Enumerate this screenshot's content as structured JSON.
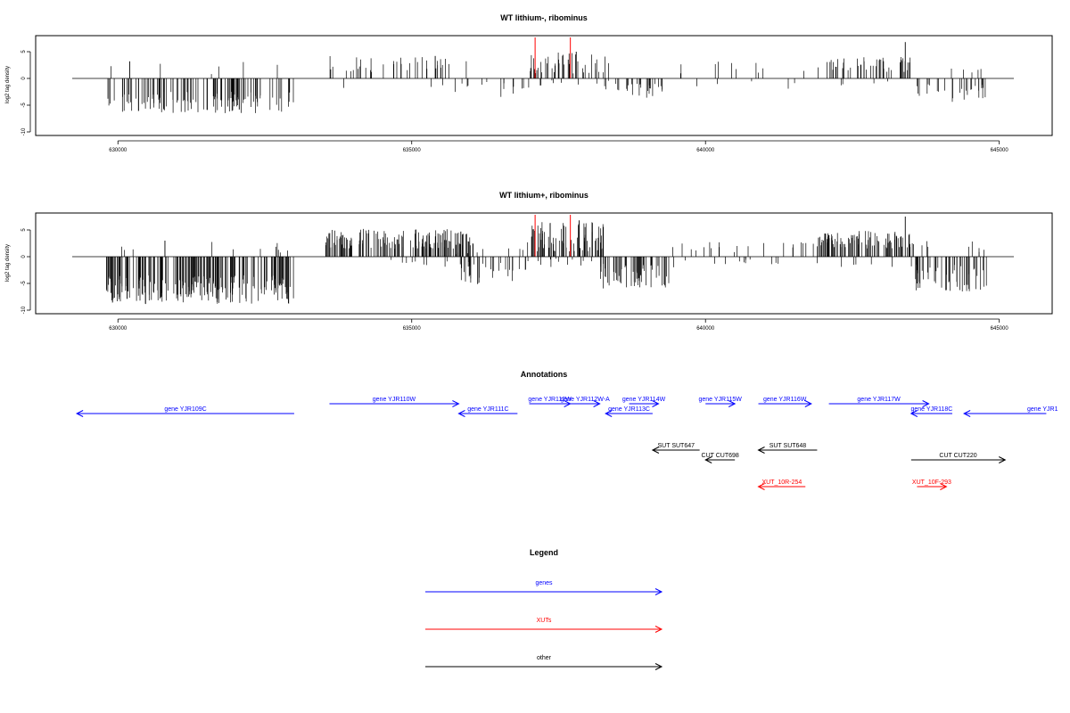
{
  "chart_data": [
    {
      "type": "bar",
      "title": "WT lithium-, ribominus",
      "ylabel": "log2 tag density",
      "xlim": [
        628600,
        645900
      ],
      "ylim": [
        -10,
        8
      ],
      "x_ticks": [
        "630000",
        "635000",
        "640000",
        "645000"
      ],
      "y_ticks": [
        "-10",
        "-5",
        "0",
        "5"
      ],
      "series": [
        {
          "segments": [
            {
              "start": 629800,
              "end": 633000,
              "sign": -1,
              "min": 2.5,
              "max": 6.5,
              "density": 0.55
            },
            {
              "start": 629800,
              "end": 633000,
              "sign": 1,
              "min": 0.6,
              "max": 3.2,
              "density": 0.03
            },
            {
              "start": 633500,
              "end": 636000,
              "sign": 1,
              "min": 1.2,
              "max": 4.2,
              "density": 0.22
            },
            {
              "start": 633600,
              "end": 636000,
              "sign": -1,
              "min": 0.5,
              "max": 1.8,
              "density": 0.03
            },
            {
              "start": 635700,
              "end": 637000,
              "sign": -1,
              "min": 0.5,
              "max": 3.5,
              "density": 0.14
            },
            {
              "start": 637000,
              "end": 638400,
              "sign": 1,
              "min": 0.8,
              "max": 5.0,
              "density": 0.45
            },
            {
              "start": 637000,
              "end": 638400,
              "sign": -1,
              "min": 0.3,
              "max": 1.5,
              "density": 0.1
            },
            {
              "start": 638300,
              "end": 639300,
              "sign": -1,
              "min": 1.0,
              "max": 3.8,
              "density": 0.4
            },
            {
              "start": 639400,
              "end": 641900,
              "sign": 1,
              "min": 0.6,
              "max": 3.2,
              "density": 0.06
            },
            {
              "start": 639400,
              "end": 641900,
              "sign": -1,
              "min": 0.5,
              "max": 2.2,
              "density": 0.03
            },
            {
              "start": 641900,
              "end": 643500,
              "sign": 1,
              "min": 1.2,
              "max": 4.0,
              "density": 0.45
            },
            {
              "start": 641900,
              "end": 643500,
              "sign": -1,
              "min": 0.5,
              "max": 1.5,
              "density": 0.04
            },
            {
              "start": 643500,
              "end": 644800,
              "sign": -1,
              "min": 1.0,
              "max": 4.5,
              "density": 0.3
            },
            {
              "start": 643500,
              "end": 644800,
              "sign": 1,
              "min": 0.5,
              "max": 2.0,
              "density": 0.06
            }
          ]
        }
      ],
      "spikes": [
        {
          "x": 643400,
          "y": 6.8
        },
        {
          "x": 630200,
          "y": 3.2
        },
        {
          "x": 637800,
          "y": 5.0
        },
        {
          "x": 635400,
          "y": 4.2
        }
      ],
      "red_marks": [
        637100,
        637700
      ]
    },
    {
      "type": "bar",
      "title": "WT lithium+, ribominus",
      "ylabel": "log2 tag density",
      "xlim": [
        628600,
        645900
      ],
      "ylim": [
        -10,
        8
      ],
      "x_ticks": [
        "630000",
        "635000",
        "640000",
        "645000"
      ],
      "y_ticks": [
        "-10",
        "-5",
        "0",
        "5"
      ],
      "series": [
        {
          "segments": [
            {
              "start": 629800,
              "end": 633000,
              "sign": -1,
              "min": 3.5,
              "max": 9.0,
              "density": 1.0
            },
            {
              "start": 629800,
              "end": 633000,
              "sign": 1,
              "min": 0.6,
              "max": 3.0,
              "density": 0.05
            },
            {
              "start": 633500,
              "end": 636000,
              "sign": 1,
              "min": 1.5,
              "max": 5.2,
              "density": 0.9
            },
            {
              "start": 633500,
              "end": 636000,
              "sign": -1,
              "min": 0.5,
              "max": 2.0,
              "density": 0.06
            },
            {
              "start": 635600,
              "end": 637000,
              "sign": -1,
              "min": 0.8,
              "max": 5.5,
              "density": 0.35
            },
            {
              "start": 635600,
              "end": 637000,
              "sign": 1,
              "min": 0.5,
              "max": 3.0,
              "density": 0.15
            },
            {
              "start": 637000,
              "end": 638300,
              "sign": 1,
              "min": 1.0,
              "max": 6.5,
              "density": 0.85
            },
            {
              "start": 637000,
              "end": 638300,
              "sign": -1,
              "min": 0.3,
              "max": 2.0,
              "density": 0.15
            },
            {
              "start": 638200,
              "end": 639400,
              "sign": -1,
              "min": 1.5,
              "max": 6.0,
              "density": 0.7
            },
            {
              "start": 639400,
              "end": 641900,
              "sign": 1,
              "min": 0.6,
              "max": 3.0,
              "density": 0.12
            },
            {
              "start": 639400,
              "end": 641900,
              "sign": -1,
              "min": 0.5,
              "max": 2.2,
              "density": 0.07
            },
            {
              "start": 641900,
              "end": 643500,
              "sign": 1,
              "min": 1.5,
              "max": 4.8,
              "density": 0.9
            },
            {
              "start": 641900,
              "end": 643500,
              "sign": -1,
              "min": 0.5,
              "max": 2.0,
              "density": 0.06
            },
            {
              "start": 643500,
              "end": 644800,
              "sign": -1,
              "min": 1.5,
              "max": 6.5,
              "density": 0.6
            },
            {
              "start": 643500,
              "end": 644800,
              "sign": 1,
              "min": 0.5,
              "max": 3.0,
              "density": 0.12
            }
          ]
        }
      ],
      "spikes": [
        {
          "x": 643400,
          "y": 7.5
        },
        {
          "x": 630800,
          "y": 3.0
        },
        {
          "x": 637850,
          "y": 6.8
        }
      ],
      "red_marks": [
        637100,
        637700
      ]
    }
  ],
  "annotations": {
    "title": "Annotations",
    "features": [
      {
        "label": "gene YJR109C",
        "start": 629300,
        "end": 633000,
        "strand": "-",
        "row": 1,
        "type": "gene",
        "color": "#0000ff"
      },
      {
        "label": "gene YJR110W",
        "start": 633600,
        "end": 635800,
        "strand": "+",
        "row": 0,
        "type": "gene",
        "color": "#0000ff"
      },
      {
        "label": "gene YJR111C",
        "start": 635800,
        "end": 636800,
        "strand": "-",
        "row": 1,
        "type": "gene",
        "color": "#0000ff"
      },
      {
        "label": "gene YJR112W",
        "start": 637000,
        "end": 637700,
        "strand": "+",
        "row": 0,
        "type": "gene",
        "color": "#0000ff"
      },
      {
        "label": "gene YJR112W-A",
        "start": 637700,
        "end": 638200,
        "strand": "+",
        "row": 0,
        "type": "gene",
        "color": "#0000ff"
      },
      {
        "label": "gene YJR113C",
        "start": 638300,
        "end": 639100,
        "strand": "-",
        "row": 1,
        "type": "gene",
        "color": "#0000ff"
      },
      {
        "label": "gene YJR114W",
        "start": 638700,
        "end": 639200,
        "strand": "+",
        "row": 0,
        "type": "gene",
        "color": "#0000ff"
      },
      {
        "label": "gene YJR115W",
        "start": 640000,
        "end": 640500,
        "strand": "+",
        "row": 0,
        "type": "gene",
        "color": "#0000ff"
      },
      {
        "label": "gene YJR116W",
        "start": 640900,
        "end": 641800,
        "strand": "+",
        "row": 0,
        "type": "gene",
        "color": "#0000ff"
      },
      {
        "label": "gene YJR117W",
        "start": 642100,
        "end": 643800,
        "strand": "+",
        "row": 0,
        "type": "gene",
        "color": "#0000ff"
      },
      {
        "label": "gene YJR118C",
        "start": 643500,
        "end": 644200,
        "strand": "-",
        "row": 1,
        "type": "gene",
        "color": "#0000ff"
      },
      {
        "label": "gene YJR1",
        "start": 644400,
        "end": 645800,
        "strand": "-",
        "row": 1,
        "type": "gene",
        "color": "#0000ff"
      },
      {
        "label": "SUT SUT647",
        "start": 639100,
        "end": 639900,
        "strand": "-",
        "row": 2,
        "type": "other",
        "color": "#000000"
      },
      {
        "label": "SUT SUT648",
        "start": 640900,
        "end": 641900,
        "strand": "-",
        "row": 2,
        "type": "other",
        "color": "#000000"
      },
      {
        "label": "CUT CUT698",
        "start": 640000,
        "end": 640500,
        "strand": "-",
        "row": 3,
        "type": "other",
        "color": "#000000"
      },
      {
        "label": "CUT CUT220",
        "start": 643500,
        "end": 645100,
        "strand": "+",
        "row": 3,
        "type": "other",
        "color": "#000000"
      },
      {
        "label": "XUT_10R-254",
        "start": 640900,
        "end": 641700,
        "strand": "-",
        "row": 4,
        "type": "xut",
        "color": "#ff0000"
      },
      {
        "label": "XUT_10F-293",
        "start": 643600,
        "end": 644100,
        "strand": "+",
        "row": 4,
        "type": "xut",
        "color": "#ff0000"
      }
    ]
  },
  "legend": {
    "title": "Legend",
    "items": [
      {
        "label": "genes",
        "color": "#0000ff"
      },
      {
        "label": "XUTs",
        "color": "#ff0000"
      },
      {
        "label": "other",
        "color": "#000000"
      }
    ]
  }
}
